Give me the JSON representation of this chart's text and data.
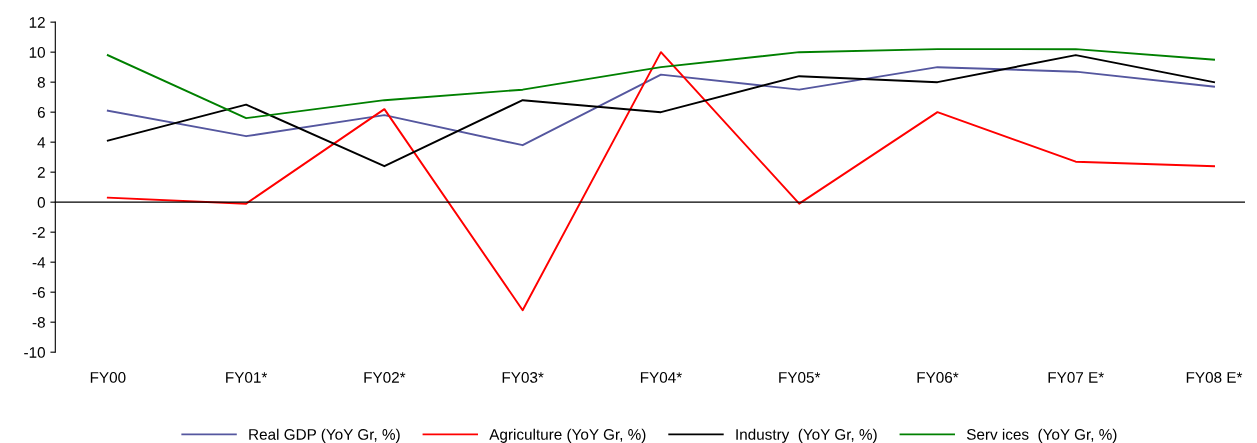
{
  "chart_data": {
    "type": "line",
    "categories": [
      "FY00",
      "FY01*",
      "FY02*",
      "FY03*",
      "FY04*",
      "FY05*",
      "FY06*",
      "FY07 E*",
      "FY08 E*"
    ],
    "series": [
      {
        "name": "Real GDP (YoY Gr, %)",
        "color": "#55579f",
        "values": [
          6.1,
          4.4,
          5.8,
          3.8,
          8.5,
          7.5,
          9.0,
          8.7,
          7.7
        ]
      },
      {
        "name": "Agriculture (YoY Gr, %)",
        "color": "#ff0000",
        "values": [
          0.3,
          -0.1,
          6.2,
          -7.2,
          10.0,
          -0.1,
          6.0,
          2.7,
          2.4
        ]
      },
      {
        "name": "Industry  (YoY Gr, %)",
        "color": "#000000",
        "values": [
          4.1,
          6.5,
          2.4,
          6.8,
          6.0,
          8.4,
          8.0,
          9.8,
          8.0
        ]
      },
      {
        "name": "Serv ices  (YoY Gr, %)",
        "color": "#008000",
        "values": [
          9.8,
          5.6,
          6.8,
          7.5,
          9.0,
          10.0,
          10.2,
          10.2,
          9.5
        ]
      }
    ],
    "ylim": [
      -10,
      12
    ],
    "yticks": [
      -10,
      -8,
      -6,
      -4,
      -2,
      0,
      2,
      4,
      6,
      8,
      10,
      12
    ],
    "legend": "bottom",
    "marker": "none",
    "line_style": "solid"
  }
}
